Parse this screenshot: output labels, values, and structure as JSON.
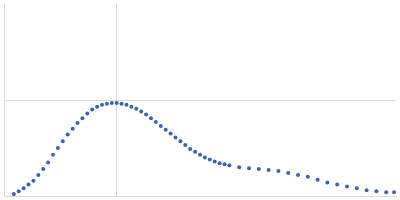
{
  "chart_data": {
    "type": "scatter",
    "x": [
      0.00875,
      0.01313,
      0.0175,
      0.02188,
      0.02625,
      0.03063,
      0.035,
      0.03938,
      0.04375,
      0.04813,
      0.0525,
      0.05688,
      0.06125,
      0.06563,
      0.07,
      0.07438,
      0.07875,
      0.08313,
      0.0875,
      0.09188,
      0.09625,
      0.10063,
      0.105,
      0.10938,
      0.11375,
      0.11813,
      0.1225,
      0.12688,
      0.13125,
      0.13563,
      0.14,
      0.14438,
      0.14875,
      0.15313,
      0.1575,
      0.16188,
      0.16625,
      0.17063,
      0.175,
      0.17938,
      0.18375,
      0.18813,
      0.1925,
      0.19688,
      0.20125,
      0.21,
      0.21875,
      0.2275,
      0.23625,
      0.245,
      0.25375,
      0.2625,
      0.27125,
      0.28,
      0.28875,
      0.2975,
      0.30625,
      0.315,
      0.32375,
      0.3325,
      0.34125,
      0.34825
    ],
    "values": [
      0.02,
      0.05,
      0.08,
      0.12,
      0.16,
      0.22,
      0.28,
      0.35,
      0.43,
      0.5,
      0.57,
      0.64,
      0.7,
      0.76,
      0.81,
      0.86,
      0.9,
      0.93,
      0.95,
      0.96,
      0.97,
      0.97,
      0.96,
      0.95,
      0.93,
      0.91,
      0.88,
      0.85,
      0.81,
      0.77,
      0.73,
      0.69,
      0.65,
      0.61,
      0.57,
      0.53,
      0.49,
      0.46,
      0.43,
      0.4,
      0.38,
      0.36,
      0.34,
      0.33,
      0.32,
      0.3,
      0.29,
      0.28,
      0.27,
      0.26,
      0.24,
      0.22,
      0.2,
      0.17,
      0.14,
      0.12,
      0.1,
      0.08,
      0.06,
      0.05,
      0.04,
      0.04
    ],
    "color": "#3b64ad",
    "marker": "circle",
    "xlim": [
      0,
      0.35
    ],
    "ylim": [
      0,
      2
    ],
    "xticks": [
      0.1
    ],
    "yticks": [
      1
    ],
    "grid": true,
    "tick_labels": false
  }
}
